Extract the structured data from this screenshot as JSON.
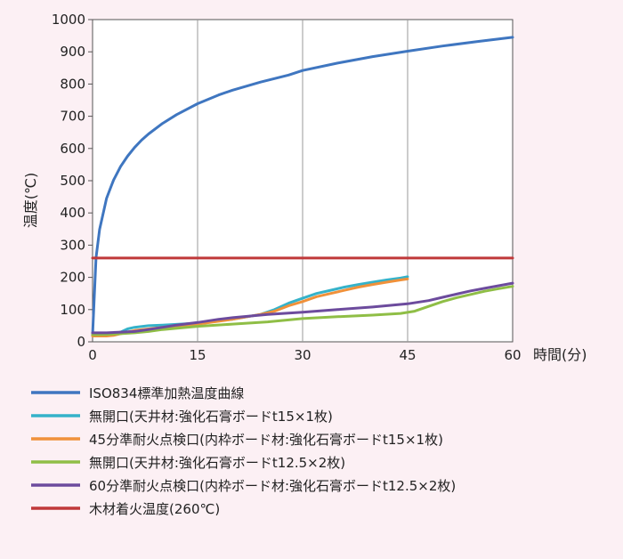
{
  "chart_data": {
    "type": "line",
    "xlabel": "時間(分)",
    "ylabel": "温度(℃)",
    "xlim": [
      0,
      60
    ],
    "ylim": [
      0,
      1000
    ],
    "xticks": [
      "0",
      "15",
      "30",
      "45",
      "60"
    ],
    "yticks": [
      "0",
      "100",
      "200",
      "300",
      "400",
      "500",
      "600",
      "700",
      "800",
      "900",
      "1000"
    ],
    "grid": "vertical",
    "legend_position": "bottom",
    "series": [
      {
        "name": "ISO834標準加熱温度曲線",
        "color": "#3f76c0",
        "x": [
          0,
          0.5,
          1,
          1.5,
          2,
          2.5,
          3,
          4,
          5,
          6,
          7,
          8,
          10,
          12,
          15,
          18,
          20,
          24,
          28,
          30,
          35,
          40,
          45,
          50,
          55,
          60
        ],
        "y": [
          20,
          261,
          349,
          397,
          445,
          474,
          502,
          544,
          576,
          603,
          626,
          645,
          678,
          705,
          739,
          766,
          781,
          806,
          828,
          842,
          865,
          885,
          902,
          918,
          932,
          945
        ]
      },
      {
        "name": "無開口(天井材:強化石膏ボードt15×1枚)",
        "color": "#35b2c9",
        "x": [
          0,
          3,
          4,
          5,
          6,
          8,
          10,
          15,
          20,
          24,
          26,
          28,
          30,
          32,
          34,
          36,
          38,
          40,
          42,
          44,
          45
        ],
        "y": [
          25,
          25,
          30,
          40,
          45,
          50,
          52,
          58,
          70,
          85,
          100,
          120,
          135,
          150,
          160,
          170,
          178,
          185,
          192,
          198,
          202
        ]
      },
      {
        "name": "45分準耐火点検口(内枠ボード材:強化石膏ボードt15×1枚)",
        "color": "#f0913a",
        "x": [
          0,
          2,
          3,
          4,
          5,
          6,
          8,
          10,
          15,
          20,
          24,
          26,
          28,
          30,
          32,
          34,
          36,
          38,
          40,
          42,
          44,
          45
        ],
        "y": [
          18,
          18,
          20,
          25,
          30,
          35,
          40,
          45,
          55,
          70,
          85,
          95,
          112,
          125,
          140,
          150,
          160,
          170,
          178,
          185,
          192,
          195
        ]
      },
      {
        "name": "無開口(天井材:強化石膏ボードt12.5×2枚)",
        "color": "#8fbe46",
        "x": [
          0,
          2,
          4,
          6,
          8,
          10,
          15,
          20,
          25,
          30,
          35,
          40,
          44,
          46,
          48,
          50,
          52,
          54,
          56,
          58,
          60
        ],
        "y": [
          22,
          23,
          25,
          28,
          32,
          38,
          48,
          55,
          62,
          72,
          78,
          83,
          88,
          95,
          110,
          125,
          137,
          147,
          157,
          165,
          172
        ]
      },
      {
        "name": "60分準耐火点検口(内枠ボード材:強化石膏ボードt12.5×2枚)",
        "color": "#6c4b9d",
        "x": [
          0,
          2,
          4,
          6,
          8,
          10,
          12,
          15,
          18,
          20,
          25,
          30,
          35,
          40,
          45,
          48,
          50,
          52,
          54,
          56,
          58,
          60
        ],
        "y": [
          28,
          28,
          30,
          32,
          38,
          45,
          52,
          60,
          70,
          75,
          85,
          92,
          100,
          108,
          118,
          128,
          138,
          148,
          158,
          166,
          174,
          182
        ]
      },
      {
        "name": "木材着火温度(260℃)",
        "color": "#c0393a",
        "x": [
          0,
          60
        ],
        "y": [
          260,
          260
        ]
      }
    ]
  }
}
